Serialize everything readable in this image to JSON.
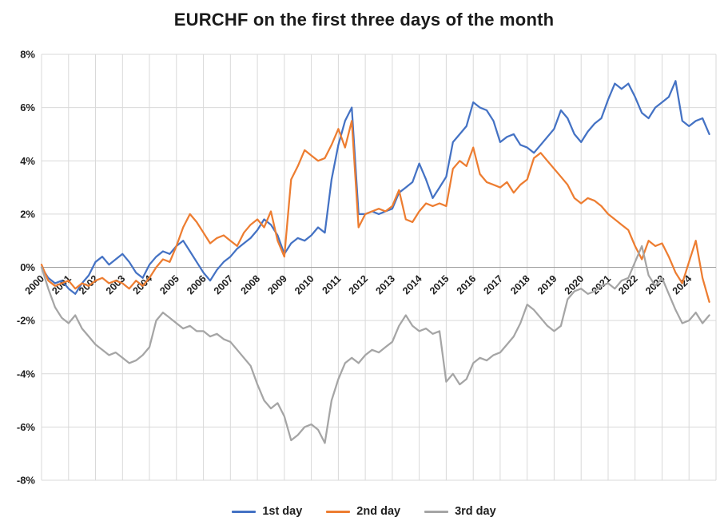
{
  "title": "EURCHF on the first three days of the month",
  "colors": {
    "series_blue": "#4472C4",
    "series_orange": "#ED7D31",
    "series_gray": "#A5A5A5",
    "gridline": "#D9D9D9",
    "zero_axis": "#9E9E9E",
    "text": "#1F1F1F"
  },
  "chart_data": {
    "type": "line",
    "title": "EURCHF on the first three days of the month",
    "xlabel": "",
    "ylabel": "",
    "xlim": [
      2000,
      2025
    ],
    "ylim": [
      -8,
      8
    ],
    "grid": true,
    "legend_position": "bottom",
    "yticks": [
      8,
      6,
      4,
      2,
      0,
      -2,
      -4,
      -6,
      -8
    ],
    "ytick_suffix": "%",
    "xticks": [
      2000,
      2001,
      2002,
      2003,
      2004,
      2005,
      2006,
      2007,
      2008,
      2009,
      2010,
      2011,
      2012,
      2013,
      2014,
      2015,
      2016,
      2017,
      2018,
      2019,
      2020,
      2021,
      2022,
      2023,
      2024
    ],
    "x": [
      2000,
      2000.25,
      2000.5,
      2000.75,
      2001,
      2001.25,
      2001.5,
      2001.75,
      2002,
      2002.25,
      2002.5,
      2002.75,
      2003,
      2003.25,
      2003.5,
      2003.75,
      2004,
      2004.25,
      2004.5,
      2004.75,
      2005,
      2005.25,
      2005.5,
      2005.75,
      2006,
      2006.25,
      2006.5,
      2006.75,
      2007,
      2007.25,
      2007.5,
      2007.75,
      2008,
      2008.25,
      2008.5,
      2008.75,
      2009,
      2009.25,
      2009.5,
      2009.75,
      2010,
      2010.25,
      2010.5,
      2010.75,
      2011,
      2011.25,
      2011.5,
      2011.75,
      2012,
      2012.25,
      2012.5,
      2012.75,
      2013,
      2013.25,
      2013.5,
      2013.75,
      2014,
      2014.25,
      2014.5,
      2014.75,
      2015,
      2015.25,
      2015.5,
      2015.75,
      2016,
      2016.25,
      2016.5,
      2016.75,
      2017,
      2017.25,
      2017.5,
      2017.75,
      2018,
      2018.25,
      2018.5,
      2018.75,
      2019,
      2019.25,
      2019.5,
      2019.75,
      2020,
      2020.25,
      2020.5,
      2020.75,
      2021,
      2021.25,
      2021.5,
      2021.75,
      2022,
      2022.25,
      2022.5,
      2022.75,
      2023,
      2023.25,
      2023.5,
      2023.75,
      2024,
      2024.25,
      2024.5,
      2024.75
    ],
    "series": [
      {
        "name": "1st day",
        "color": "#4472C4",
        "values": [
          0.0,
          -0.4,
          -0.6,
          -0.5,
          -0.8,
          -1.0,
          -0.6,
          -0.3,
          0.2,
          0.4,
          0.1,
          0.3,
          0.5,
          0.2,
          -0.2,
          -0.4,
          0.1,
          0.4,
          0.6,
          0.5,
          0.8,
          1.0,
          0.6,
          0.2,
          -0.2,
          -0.5,
          -0.1,
          0.2,
          0.4,
          0.7,
          0.9,
          1.1,
          1.4,
          1.8,
          1.6,
          1.2,
          0.5,
          0.9,
          1.1,
          1.0,
          1.2,
          1.5,
          1.3,
          3.3,
          4.6,
          5.5,
          6.0,
          2.0,
          2.0,
          2.1,
          2.0,
          2.1,
          2.2,
          2.8,
          3.0,
          3.2,
          3.9,
          3.3,
          2.6,
          3.0,
          3.4,
          4.7,
          5.0,
          5.3,
          6.2,
          6.0,
          5.9,
          5.5,
          4.7,
          4.9,
          5.0,
          4.6,
          4.5,
          4.3,
          4.6,
          4.9,
          5.2,
          5.9,
          5.6,
          5.0,
          4.7,
          5.1,
          5.4,
          5.6,
          6.3,
          6.9,
          6.7,
          6.9,
          6.4,
          5.8,
          5.6,
          6.0,
          6.2,
          6.4,
          7.0,
          5.5,
          5.3,
          5.5,
          5.6,
          5.0
        ]
      },
      {
        "name": "2nd day",
        "color": "#ED7D31",
        "values": [
          0.1,
          -0.5,
          -0.7,
          -0.6,
          -0.5,
          -0.8,
          -0.6,
          -0.7,
          -0.5,
          -0.4,
          -0.6,
          -0.5,
          -0.6,
          -0.8,
          -0.5,
          -0.7,
          -0.4,
          0.0,
          0.3,
          0.2,
          0.8,
          1.5,
          2.0,
          1.7,
          1.3,
          0.9,
          1.1,
          1.2,
          1.0,
          0.8,
          1.3,
          1.6,
          1.8,
          1.5,
          2.1,
          1.0,
          0.4,
          3.3,
          3.8,
          4.4,
          4.2,
          4.0,
          4.1,
          4.6,
          5.2,
          4.5,
          5.5,
          1.5,
          2.0,
          2.1,
          2.2,
          2.1,
          2.3,
          2.9,
          1.8,
          1.7,
          2.1,
          2.4,
          2.3,
          2.4,
          2.3,
          3.7,
          4.0,
          3.8,
          4.5,
          3.5,
          3.2,
          3.1,
          3.0,
          3.2,
          2.8,
          3.1,
          3.3,
          4.1,
          4.3,
          4.0,
          3.7,
          3.4,
          3.1,
          2.6,
          2.4,
          2.6,
          2.5,
          2.3,
          2.0,
          1.8,
          1.6,
          1.4,
          0.8,
          0.3,
          1.0,
          0.8,
          0.9,
          0.4,
          -0.2,
          -0.6,
          0.2,
          1.0,
          -0.4,
          -1.3
        ]
      },
      {
        "name": "3rd day",
        "color": "#A5A5A5",
        "values": [
          0.0,
          -0.8,
          -1.5,
          -1.9,
          -2.1,
          -1.8,
          -2.3,
          -2.6,
          -2.9,
          -3.1,
          -3.3,
          -3.2,
          -3.4,
          -3.6,
          -3.5,
          -3.3,
          -3.0,
          -2.0,
          -1.7,
          -1.9,
          -2.1,
          -2.3,
          -2.2,
          -2.4,
          -2.4,
          -2.6,
          -2.5,
          -2.7,
          -2.8,
          -3.1,
          -3.4,
          -3.7,
          -4.4,
          -5.0,
          -5.3,
          -5.1,
          -5.6,
          -6.5,
          -6.3,
          -6.0,
          -5.9,
          -6.1,
          -6.6,
          -5.0,
          -4.2,
          -3.6,
          -3.4,
          -3.6,
          -3.3,
          -3.1,
          -3.2,
          -3.0,
          -2.8,
          -2.2,
          -1.8,
          -2.2,
          -2.4,
          -2.3,
          -2.5,
          -2.4,
          -4.3,
          -4.0,
          -4.4,
          -4.2,
          -3.6,
          -3.4,
          -3.5,
          -3.3,
          -3.2,
          -2.9,
          -2.6,
          -2.1,
          -1.4,
          -1.6,
          -1.9,
          -2.2,
          -2.4,
          -2.2,
          -1.2,
          -0.9,
          -0.8,
          -1.0,
          -0.9,
          -0.7,
          -0.6,
          -0.8,
          -0.5,
          -0.4,
          0.2,
          0.8,
          -0.3,
          -0.7,
          -0.4,
          -1.0,
          -1.6,
          -2.1,
          -2.0,
          -1.7,
          -2.1,
          -1.8
        ]
      }
    ]
  }
}
